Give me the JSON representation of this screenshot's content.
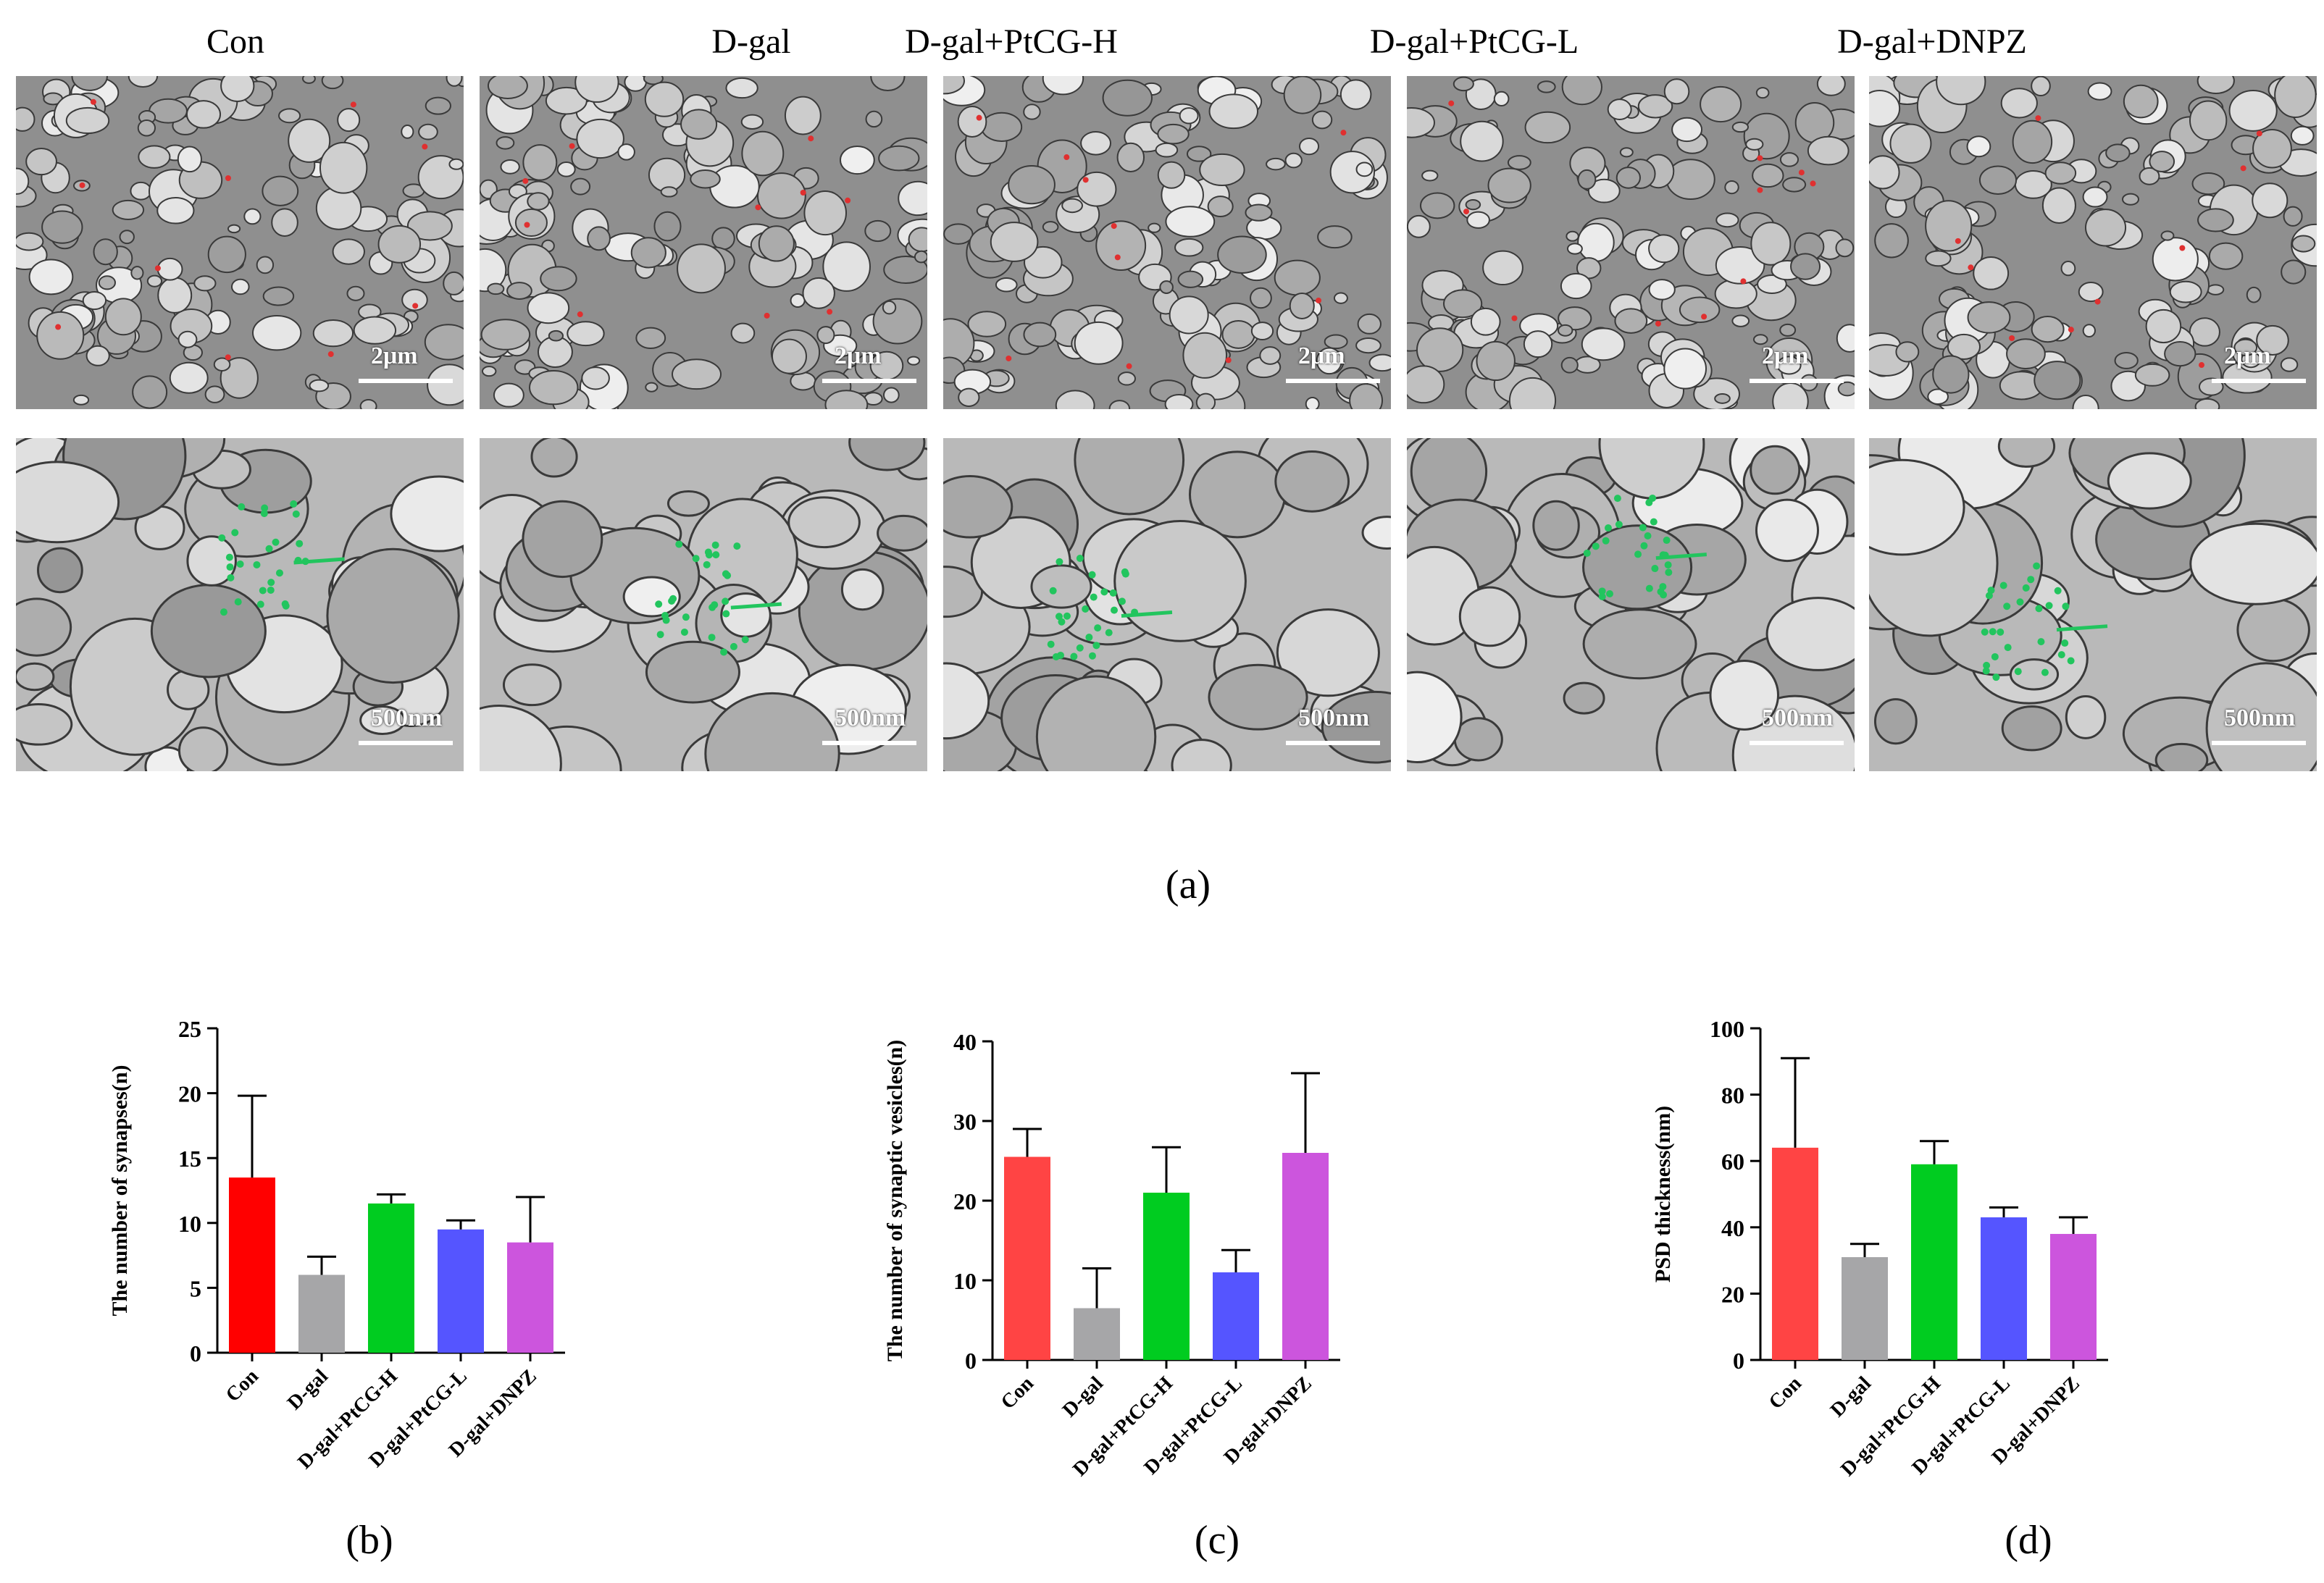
{
  "figure": {
    "panel_a": {
      "columns": [
        "Con",
        "D-gal",
        "D-gal+PtCG-H",
        "D-gal+PtCG-L",
        "D-gal+DNPZ"
      ],
      "top_row_scale": "2μm",
      "bottom_row_scale": "500nm",
      "label": "(a)"
    },
    "panel_labels": {
      "b": "(b)",
      "c": "(c)",
      "d": "(d)"
    }
  },
  "chart_data": [
    {
      "type": "bar",
      "categories": [
        "Con",
        "D-gal",
        "D-gal+PtCG-H",
        "D-gal+PtCG-L",
        "D-gal+DNPZ"
      ],
      "values": [
        13.5,
        6.0,
        11.5,
        9.5,
        8.5
      ],
      "error_upper": [
        6.3,
        1.4,
        0.7,
        0.7,
        3.5
      ],
      "ylabel": "The number of synapses(n)",
      "ylim": [
        0,
        25
      ],
      "yticks": [
        0,
        5,
        10,
        15,
        20,
        25
      ],
      "colors": [
        "#ff0000",
        "#a6a6a8",
        "#00cc20",
        "#5555ff",
        "#cc55dd"
      ]
    },
    {
      "type": "bar",
      "categories": [
        "Con",
        "D-gal",
        "D-gal+PtCG-H",
        "D-gal+PtCG-L",
        "D-gal+DNPZ"
      ],
      "values": [
        25.5,
        6.5,
        21.0,
        11.0,
        26.0
      ],
      "error_upper": [
        3.5,
        5.0,
        5.7,
        2.8,
        10.0
      ],
      "ylabel": "The number of synaptic vesicles(n)",
      "ylim": [
        0,
        40
      ],
      "yticks": [
        0,
        10,
        20,
        30,
        40
      ],
      "colors": [
        "#ff4444",
        "#a6a6a8",
        "#00cc20",
        "#5555ff",
        "#cc55dd"
      ]
    },
    {
      "type": "bar",
      "categories": [
        "Con",
        "D-gal",
        "D-gal+PtCG-H",
        "D-gal+PtCG-L",
        "D-gal+DNPZ"
      ],
      "values": [
        64,
        31,
        59,
        43,
        38
      ],
      "error_upper": [
        27,
        4,
        7,
        3,
        5
      ],
      "ylabel": "PSD thickness(nm)",
      "ylim": [
        0,
        100
      ],
      "yticks": [
        0,
        20,
        40,
        60,
        80,
        100
      ],
      "colors": [
        "#ff4444",
        "#a6a6a8",
        "#00cc20",
        "#5555ff",
        "#cc55dd"
      ]
    }
  ]
}
